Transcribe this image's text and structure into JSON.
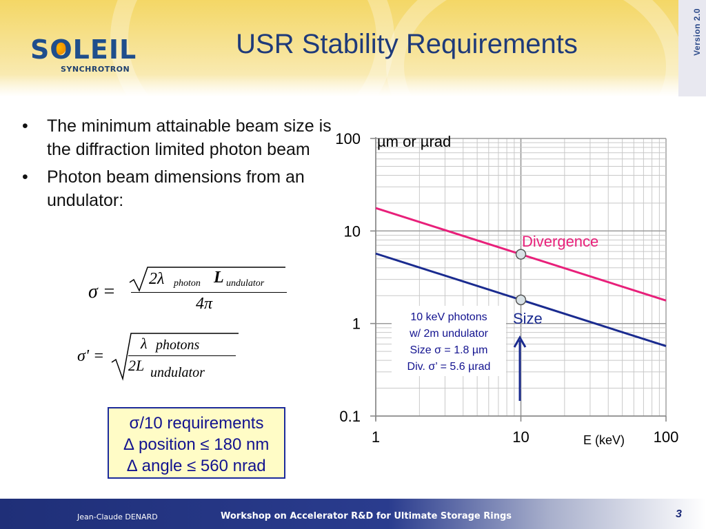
{
  "header": {
    "title": "USR Stability Requirements",
    "version": "Version 2.0",
    "logo_word": "SOLEIL",
    "logo_sub": "SYNCHROTRON"
  },
  "bullets": [
    "The minimum attainable beam size is the diffraction limited photon beam",
    "Photon beam dimensions from an undulator:"
  ],
  "formulas": {
    "sigma_lhs": "σ =",
    "sigma_num_a": "2λ",
    "sigma_num_sub1": "photon",
    "sigma_num_b": "L",
    "sigma_num_sub2": "undulator",
    "sigma_den": "4π",
    "sigmap_lhs": "σ' =",
    "sigmap_num_a": "λ",
    "sigmap_num_b": "photons",
    "sigmap_den_a": "2L",
    "sigmap_den_sub": "undulator"
  },
  "requirements": {
    "line1": "σ/10 requirements",
    "line2": "∆ position ≤ 180 nm",
    "line3": "∆ angle ≤ 560 nrad"
  },
  "chart_data": {
    "type": "line",
    "xscale": "log",
    "yscale": "log",
    "xlim": [
      1,
      100
    ],
    "ylim": [
      0.1,
      100
    ],
    "xticks": [
      "1",
      "10",
      "100"
    ],
    "yticks": [
      "0.1",
      "1",
      "10",
      "100"
    ],
    "xlabel": "E (keV)",
    "ylabel": "µm or µrad",
    "grid": true,
    "series": [
      {
        "name": "Divergence",
        "color": "#e8207a",
        "x": [
          1,
          100
        ],
        "y": [
          17.7,
          1.77
        ]
      },
      {
        "name": "Size",
        "color": "#1a2b8f",
        "x": [
          1,
          100
        ],
        "y": [
          5.7,
          0.57
        ]
      }
    ],
    "markers": [
      {
        "series": "Divergence",
        "x": 10,
        "y": 5.6
      },
      {
        "series": "Size",
        "x": 10,
        "y": 1.8
      }
    ],
    "annotation": [
      "10 keV photons",
      "w/ 2m undulator",
      "Size σ = 1.8 µm",
      "Div. σ’ = 5.6 µrad"
    ]
  },
  "footer": {
    "author": "Jean-Claude DENARD",
    "workshop": "Workshop on Accelerator R&D for Ultimate Storage Rings",
    "page": "3"
  }
}
